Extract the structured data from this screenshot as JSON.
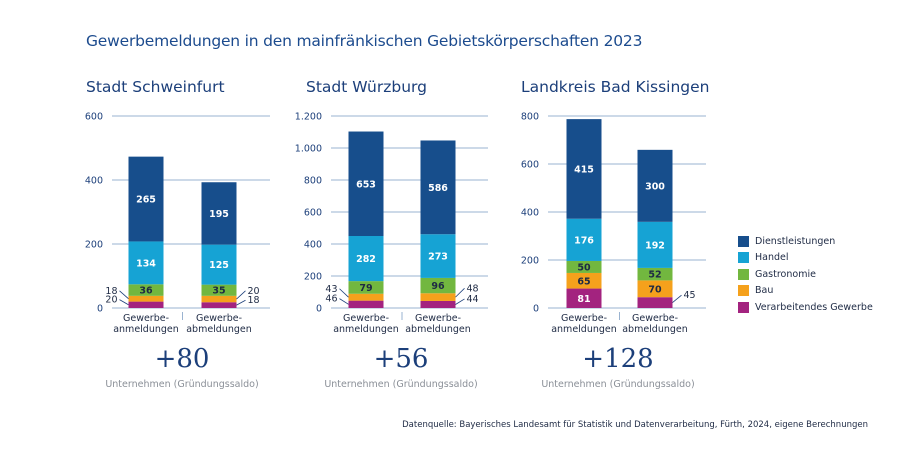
{
  "title": "Gewerbemeldungen in den mainfränkischen Gebietskörperschaften 2023",
  "source": "Datenquelle: Bayerisches Landesamt für Statistik und Datenverarbeitung, Fürth, 2024, eigene Berechnungen",
  "saldo_caption": "Unternehmen (Gründungssaldo)",
  "colors": {
    "Dienstleistungen": "#174e8c",
    "Handel": "#16a3d4",
    "Gastronomie": "#72b73f",
    "Bau": "#f5a11c",
    "Verarbeitendes Gewerbe": "#a3237f",
    "title": "#1c4b8e",
    "axis_text": "#1c3f7a",
    "grid": "#9ab3d0"
  },
  "legend": [
    "Dienstleistungen",
    "Handel",
    "Gastronomie",
    "Bau",
    "Verarbeitendes Gewerbe"
  ],
  "chart_data": [
    {
      "type": "bar",
      "stacked": true,
      "title": "Stadt Schweinfurt",
      "categories": [
        "Gewerbe-\nanmeldungen",
        "Gewerbe-\nabmeldungen"
      ],
      "series": [
        {
          "name": "Verarbeitendes Gewerbe",
          "values": [
            20,
            18
          ]
        },
        {
          "name": "Bau",
          "values": [
            18,
            20
          ]
        },
        {
          "name": "Gastronomie",
          "values": [
            36,
            35
          ]
        },
        {
          "name": "Handel",
          "values": [
            134,
            125
          ]
        },
        {
          "name": "Dienstleistungen",
          "values": [
            265,
            195
          ]
        }
      ],
      "ylim": [
        0,
        600
      ],
      "yticks": [
        0,
        200,
        400,
        600
      ],
      "ytick_labels": [
        "0",
        "200",
        "400",
        "600"
      ],
      "saldo": "+80"
    },
    {
      "type": "bar",
      "stacked": true,
      "title": "Stadt Würzburg",
      "categories": [
        "Gewerbe-\nanmeldungen",
        "Gewerbe-\nabmeldungen"
      ],
      "series": [
        {
          "name": "Verarbeitendes Gewerbe",
          "values": [
            46,
            44
          ]
        },
        {
          "name": "Bau",
          "values": [
            43,
            48
          ]
        },
        {
          "name": "Gastronomie",
          "values": [
            79,
            96
          ]
        },
        {
          "name": "Handel",
          "values": [
            282,
            273
          ]
        },
        {
          "name": "Dienstleistungen",
          "values": [
            653,
            586
          ]
        }
      ],
      "ylim": [
        0,
        1200
      ],
      "yticks": [
        0,
        200,
        400,
        600,
        800,
        1000,
        1200
      ],
      "ytick_labels": [
        "0",
        "200",
        "400",
        "600",
        "800",
        "1.000",
        "1.200"
      ],
      "saldo": "+56"
    },
    {
      "type": "bar",
      "stacked": true,
      "title": "Landkreis Bad Kissingen",
      "categories": [
        "Gewerbe-\nanmeldungen",
        "Gewerbe-\nabmeldungen"
      ],
      "series": [
        {
          "name": "Verarbeitendes Gewerbe",
          "values": [
            81,
            45
          ]
        },
        {
          "name": "Bau",
          "values": [
            65,
            70
          ]
        },
        {
          "name": "Gastronomie",
          "values": [
            50,
            52
          ]
        },
        {
          "name": "Handel",
          "values": [
            176,
            192
          ]
        },
        {
          "name": "Dienstleistungen",
          "values": [
            415,
            300
          ]
        }
      ],
      "ylim": [
        0,
        800
      ],
      "yticks": [
        0,
        200,
        400,
        600,
        800
      ],
      "ytick_labels": [
        "0",
        "200",
        "400",
        "600",
        "800"
      ],
      "saldo": "+128"
    }
  ]
}
